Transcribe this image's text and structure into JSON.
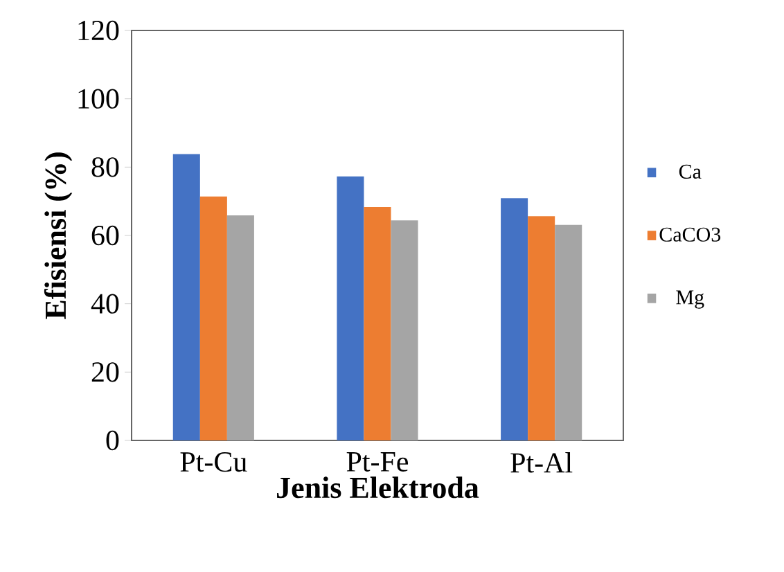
{
  "chart_data": {
    "type": "bar",
    "xlabel": "Jenis Elektroda",
    "ylabel": "Efisiensi (%)",
    "categories": [
      "Pt-Cu",
      "Pt-Fe",
      "Pt-Al"
    ],
    "series": [
      {
        "name": "Ca",
        "color": "#4472c4",
        "values": [
          83.8,
          77.3,
          70.9
        ]
      },
      {
        "name": "CaCO3",
        "color": "#ed7d31",
        "values": [
          71.4,
          68.3,
          65.6
        ]
      },
      {
        "name": "Mg",
        "color": "#a5a5a5",
        "values": [
          65.9,
          64.4,
          63.1
        ]
      }
    ],
    "ylim": [
      0,
      120
    ],
    "yticks": [
      0,
      20,
      40,
      60,
      80,
      100,
      120
    ],
    "grid": false,
    "legend": "right"
  }
}
